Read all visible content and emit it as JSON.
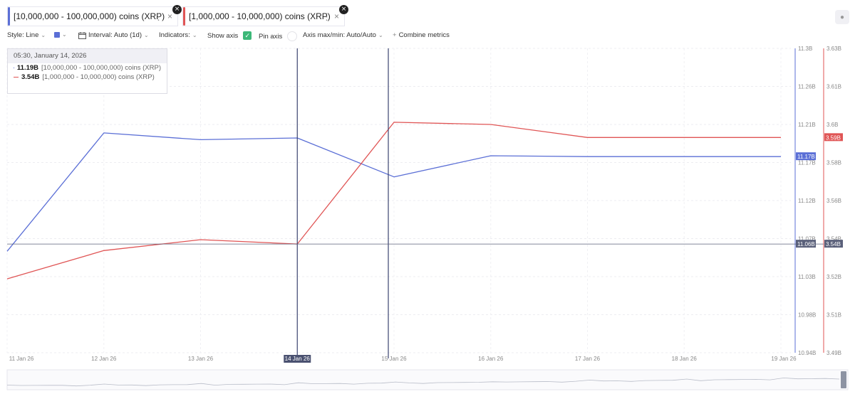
{
  "tabs": [
    {
      "label": "[10,000,000 - 100,000,000) coins (XRP)",
      "color": "#5b6fd6",
      "menu": "⋮",
      "close": "×",
      "remove": "×"
    },
    {
      "label": "[1,000,000 - 10,000,000) coins (XRP)",
      "color": "#e05555",
      "menu": "⋮",
      "close": "×",
      "remove": "×"
    }
  ],
  "toolbar": {
    "style_label": "Style: Line",
    "interval_label": "Interval: Auto (1d)",
    "indicators_label": "Indicators:",
    "show_axis_label": "Show axis",
    "pin_axis_label": "Pin axis",
    "axis_label": "Axis max/min: Auto/Auto",
    "combine_label": "Combine metrics",
    "plus": "+",
    "chevron": "⌄",
    "check": "✓",
    "calendar_icon": "calendar-icon"
  },
  "tooltip": {
    "date": "05:30, January 14, 2026",
    "rows": [
      {
        "value": "11.19B",
        "name": "[10,000,000 - 100,000,000) coins (XRP)",
        "color": "#5b6fd6"
      },
      {
        "value": "3.54B",
        "name": "[1,000,000 - 10,000,000) coins (XRP)",
        "color": "#e05555"
      }
    ]
  },
  "chart_data": {
    "type": "line",
    "x": [
      "11 Jan 26",
      "12 Jan 26",
      "13 Jan 26",
      "14 Jan 26",
      "15 Jan 26",
      "16 Jan 26",
      "17 Jan 26",
      "18 Jan 26",
      "19 Jan 26"
    ],
    "x_highlight": "14 Jan 26",
    "series": [
      {
        "name": "[10,000,000 - 100,000,000) coins (XRP)",
        "color": "#5b6fd6",
        "axis": "left",
        "values": [
          11.06,
          11.2,
          11.192,
          11.194,
          11.148,
          11.173,
          11.172,
          11.172,
          11.172
        ]
      },
      {
        "name": "[1,000,000 - 10,000,000) coins (XRP)",
        "color": "#e05555",
        "axis": "right",
        "values": [
          3.524,
          3.537,
          3.542,
          3.54,
          3.596,
          3.595,
          3.589,
          3.589,
          3.589
        ]
      }
    ],
    "y_left": {
      "ticks": [
        "11.3B",
        "11.26B",
        "11.21B",
        "11.17B",
        "11.12B",
        "11.07B",
        "11.03B",
        "10.98B",
        "10.94B"
      ],
      "range": [
        10.94,
        11.3
      ]
    },
    "y_right": {
      "ticks": [
        "3.63B",
        "3.61B",
        "3.6B",
        "3.58B",
        "3.56B",
        "3.54B",
        "3.52B",
        "3.51B",
        "3.49B"
      ],
      "range": [
        3.49,
        3.63
      ]
    },
    "last_value_labels": {
      "left": "11.17B",
      "right": "3.59B"
    },
    "crosshair_labels": {
      "left": "11.06B",
      "right": "3.54B"
    },
    "grid": true
  }
}
